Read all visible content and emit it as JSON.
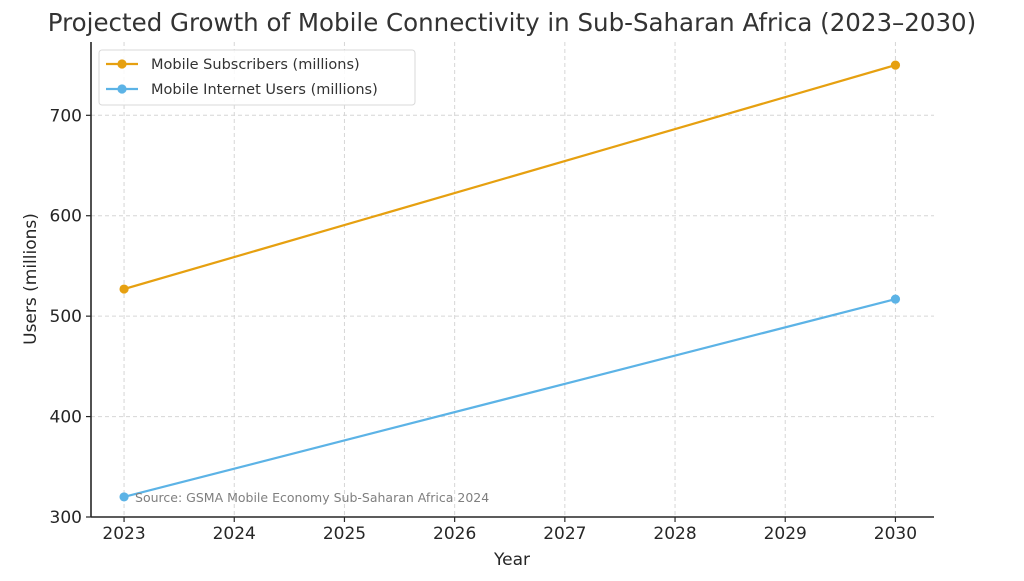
{
  "chart_data": {
    "type": "line",
    "title": "Projected Growth of Mobile Connectivity in Sub-Saharan Africa (2023–2030)",
    "xlabel": "Year",
    "ylabel": "Users (millions)",
    "x": [
      2023,
      2030
    ],
    "xticks": [
      "2023",
      "2024",
      "2025",
      "2026",
      "2027",
      "2028",
      "2029",
      "2030"
    ],
    "xlim": [
      2022.7,
      2030.35
    ],
    "yticks": [
      "300",
      "400",
      "500",
      "600",
      "700"
    ],
    "ylim": [
      300,
      773
    ],
    "grid": true,
    "legend_position": "top-left",
    "series": [
      {
        "name": "Mobile Subscribers (millions)",
        "color": "#e6a010",
        "values": [
          527,
          750
        ]
      },
      {
        "name": "Mobile Internet Users (millions)",
        "color": "#5cb3e6",
        "values": [
          320,
          517
        ]
      }
    ],
    "annotations": [
      {
        "text": "Source: GSMA Mobile Economy Sub-Saharan Africa 2024",
        "anchor_x": 2023,
        "anchor_y": 316,
        "color": "#7f7f7f"
      }
    ]
  }
}
